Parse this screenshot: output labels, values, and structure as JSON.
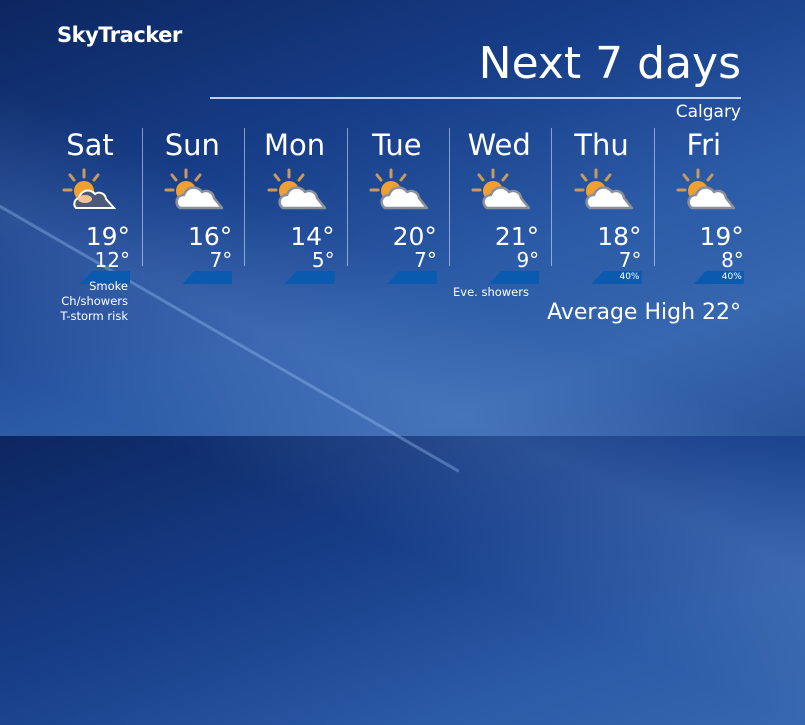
{
  "logo": "SkyTracker",
  "title": "Next 7 days",
  "location": "Calgary",
  "days": [
    {
      "name": "Sat",
      "high": "19°",
      "low": "12°",
      "icon": "sun-smoke-cloud-icon",
      "pop": ""
    },
    {
      "name": "Sun",
      "high": "16°",
      "low": "7°",
      "icon": "partly-cloudy-icon",
      "pop": ""
    },
    {
      "name": "Mon",
      "high": "14°",
      "low": "5°",
      "icon": "partly-cloudy-icon",
      "pop": ""
    },
    {
      "name": "Tue",
      "high": "20°",
      "low": "7°",
      "icon": "partly-cloudy-icon",
      "pop": ""
    },
    {
      "name": "Wed",
      "high": "21°",
      "low": "9°",
      "icon": "partly-cloudy-icon",
      "pop": ""
    },
    {
      "name": "Thu",
      "high": "18°",
      "low": "7°",
      "icon": "partly-cloudy-icon",
      "pop": "40%"
    },
    {
      "name": "Fri",
      "high": "19°",
      "low": "8°",
      "icon": "partly-cloudy-icon",
      "pop": "40%"
    }
  ],
  "notes": {
    "sat": "Smoke\nCh/showers\nT-storm risk",
    "wed": "Eve. showers"
  },
  "average_high": "Average High 22°",
  "colors": {
    "sun": "#f0a030",
    "precip_bar": "#0a5ab0"
  }
}
